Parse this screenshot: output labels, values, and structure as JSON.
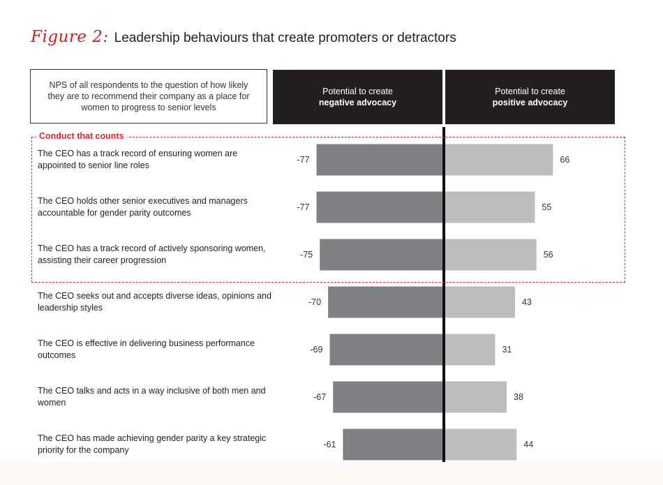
{
  "figure": {
    "label": "Figure 2:",
    "title": "Leadership behaviours that create promoters or detractors"
  },
  "question": "NPS of all respondents to the question of how likely they are to recommend their company as a place for women to progress to senior levels",
  "headers": {
    "negative": {
      "line1": "Potential to create",
      "line2": "negative advocacy"
    },
    "positive": {
      "line1": "Potential to create",
      "line2": "positive advocacy"
    }
  },
  "conduct_label": "Conduct that counts",
  "colors": {
    "negative": "#7f8083",
    "positive": "#bcbdbf",
    "accent": "#d9282b",
    "header_bg": "#231f20",
    "axis": "#111111"
  },
  "chart_data": {
    "type": "bar",
    "orientation": "horizontal-diverging",
    "categories": [
      "The CEO has a track record of ensuring women are appointed to senior line roles",
      "The CEO holds other senior executives and managers accountable for gender parity outcomes",
      "The CEO has a track record of actively sponsoring women, assisting their career progression",
      "The CEO seeks out and accepts diverse ideas, opinions and leadership styles",
      "The CEO is effective in delivering business performance outcomes",
      "The CEO talks and acts in a way inclusive of both men and women",
      "The CEO has made achieving gender parity a key strategic priority for the company"
    ],
    "series": [
      {
        "name": "Potential to create negative advocacy",
        "values": [
          -77,
          -77,
          -75,
          -70,
          -69,
          -67,
          -61
        ]
      },
      {
        "name": "Potential to create positive advocacy",
        "values": [
          66,
          55,
          56,
          43,
          31,
          38,
          44
        ]
      }
    ],
    "highlighted_group": {
      "label": "Conduct that counts",
      "count": 3
    }
  }
}
